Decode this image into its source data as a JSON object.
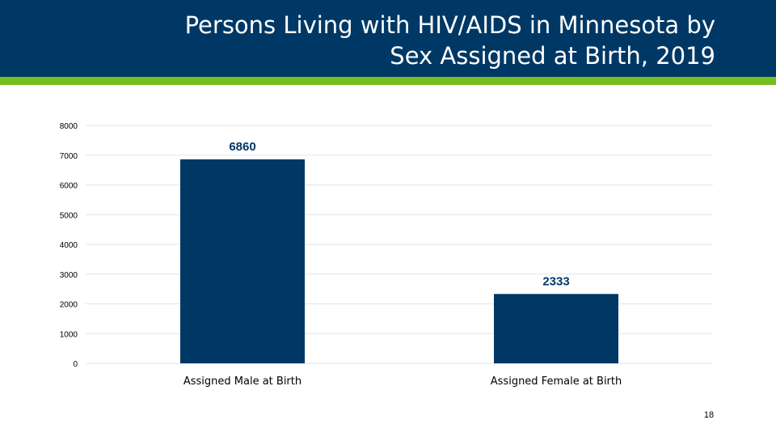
{
  "slide": {
    "title_line1": "Persons Living with HIV/AIDS in Minnesota by",
    "title_line2": "Sex Assigned at Birth, 2019",
    "page_number": "18"
  },
  "colors": {
    "header_bg": "#003865",
    "accent_stripe": "#78be21",
    "bar": "#003865",
    "data_label": "#003865",
    "gridline": "#d9e7ee"
  },
  "chart_data": {
    "type": "bar",
    "title": "Persons Living with HIV/AIDS in Minnesota by Sex Assigned at Birth, 2019",
    "categories": [
      "Assigned Male at Birth",
      "Assigned Female at Birth"
    ],
    "values": [
      6860,
      2333
    ],
    "data_labels": [
      "6860",
      "2333"
    ],
    "xlabel": "",
    "ylabel": "",
    "ylim": [
      0,
      8000
    ],
    "yticks": [
      0,
      1000,
      2000,
      3000,
      4000,
      5000,
      6000,
      7000,
      8000
    ],
    "ytick_labels": [
      "0",
      "1000",
      "2000",
      "3000",
      "4000",
      "5000",
      "6000",
      "7000",
      "8000"
    ],
    "grid": true,
    "legend": "none"
  }
}
